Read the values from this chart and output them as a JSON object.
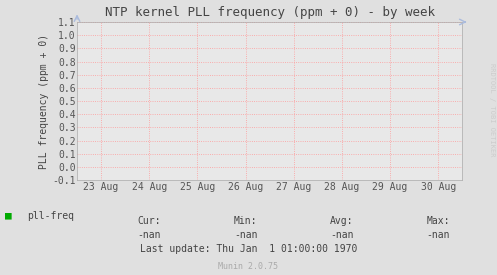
{
  "title": "NTP kernel PLL frequency (ppm + 0) - by week",
  "ylabel": "PLL frequency (ppm + 0)",
  "ylim": [
    -0.1,
    1.1
  ],
  "yticks": [
    -0.1,
    0.0,
    0.1,
    0.2,
    0.3,
    0.4,
    0.5,
    0.6,
    0.7,
    0.8,
    0.9,
    1.0,
    1.1
  ],
  "ytick_labels": [
    "-0.1",
    "0.0",
    "0.1",
    "0.2",
    "0.3",
    "0.4",
    "0.5",
    "0.6",
    "0.7",
    "0.8",
    "0.9",
    "1.0",
    "1.1"
  ],
  "xtick_labels": [
    "23 Aug",
    "24 Aug",
    "25 Aug",
    "26 Aug",
    "27 Aug",
    "28 Aug",
    "29 Aug",
    "30 Aug"
  ],
  "xtick_positions": [
    1,
    2,
    3,
    4,
    5,
    6,
    7,
    8
  ],
  "xlim": [
    0.5,
    8.5
  ],
  "bg_color": "#e0e0e0",
  "plot_bg_color": "#e8e8e8",
  "grid_color": "#ff9999",
  "border_color": "#aaaaaa",
  "title_color": "#444444",
  "label_color": "#444444",
  "tick_color": "#555555",
  "legend_label": "pll-freq",
  "legend_color": "#00aa00",
  "cur_val": "-nan",
  "min_val": "-nan",
  "avg_val": "-nan",
  "max_val": "-nan",
  "last_update": "Last update: Thu Jan  1 01:00:00 1970",
  "munin_version": "Munin 2.0.75",
  "rrdtool_text": "RRDTOOL / TOBI OETIKER",
  "arrow_color": "#aabbdd",
  "footer_color": "#aaaaaa",
  "font_size_title": 9,
  "font_size_tick": 7,
  "font_size_legend": 7,
  "font_size_footer": 6
}
